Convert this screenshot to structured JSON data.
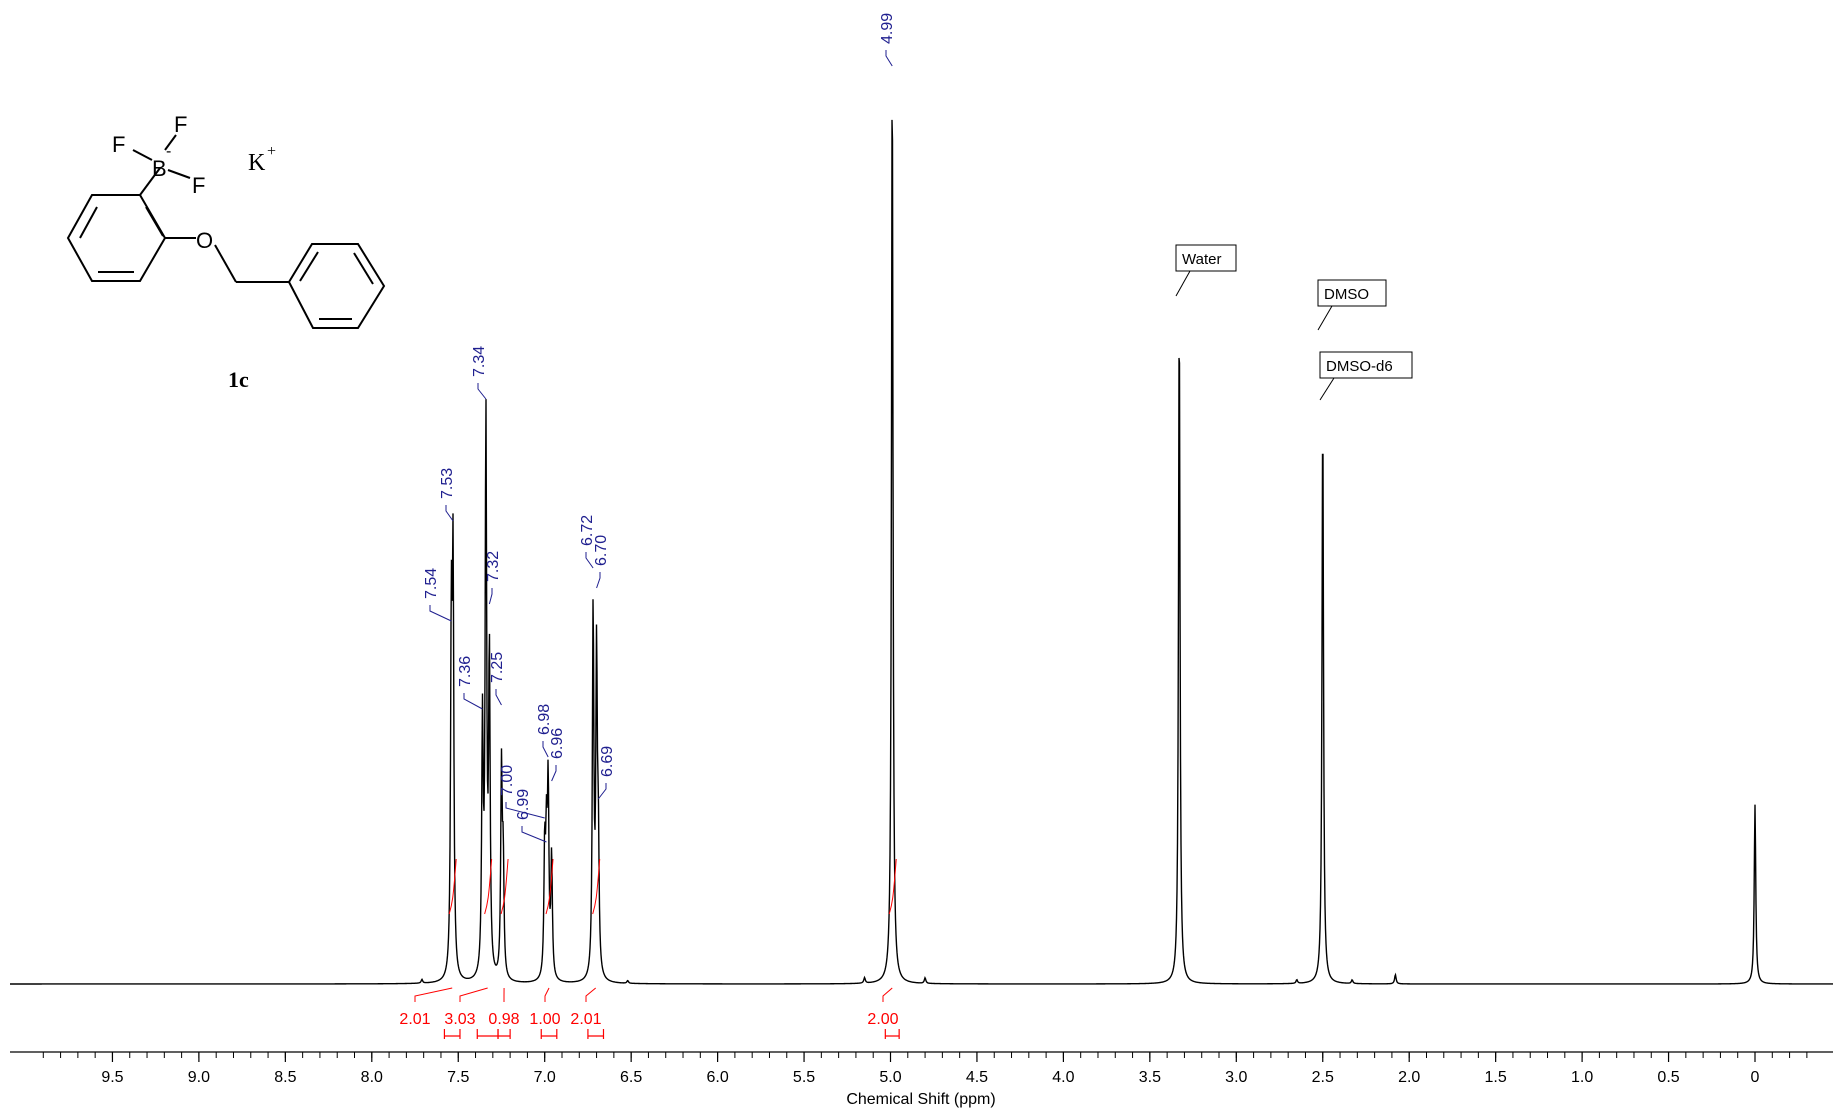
{
  "chart_data": {
    "type": "line",
    "xlabel": "Chemical Shift (ppm)",
    "ylabel": "",
    "xlim": [
      9.9,
      0.0
    ],
    "x_reversed": true,
    "ticks": [
      "9.5",
      "9.0",
      "8.5",
      "8.0",
      "7.5",
      "7.0",
      "6.5",
      "6.0",
      "5.5",
      "5.0",
      "4.5",
      "4.0",
      "3.5",
      "3.0",
      "2.5",
      "2.0",
      "1.5",
      "1.0",
      "0.5",
      "0"
    ],
    "tick_values": [
      9.5,
      9.0,
      8.5,
      8.0,
      7.5,
      7.0,
      6.5,
      6.0,
      5.5,
      5.0,
      4.5,
      4.0,
      3.5,
      3.0,
      2.5,
      2.0,
      1.5,
      1.0,
      0.5,
      0.0
    ],
    "peaks": [
      {
        "ppm": 7.54,
        "height": 0.365
      },
      {
        "ppm": 7.53,
        "height": 0.43
      },
      {
        "ppm": 7.36,
        "height": 0.27
      },
      {
        "ppm": 7.34,
        "height": 0.6
      },
      {
        "ppm": 7.32,
        "height": 0.345
      },
      {
        "ppm": 7.25,
        "height": 0.225
      },
      {
        "ppm": 7.24,
        "height": 0.12
      },
      {
        "ppm": 7.0,
        "height": 0.135
      },
      {
        "ppm": 6.99,
        "height": 0.13
      },
      {
        "ppm": 6.98,
        "height": 0.2
      },
      {
        "ppm": 6.96,
        "height": 0.13
      },
      {
        "ppm": 6.72,
        "height": 0.4
      },
      {
        "ppm": 6.7,
        "height": 0.34
      },
      {
        "ppm": 6.69,
        "height": 0.13
      },
      {
        "ppm": 4.99,
        "height": 1.0
      },
      {
        "ppm": 3.33,
        "height": 0.73
      },
      {
        "ppm": 2.5,
        "height": 0.62
      },
      {
        "ppm": 0.0,
        "height": 0.195
      },
      {
        "ppm": 2.08,
        "height": 0.01
      },
      {
        "ppm": 5.15,
        "height": 0.006
      },
      {
        "ppm": 4.8,
        "height": 0.006
      },
      {
        "ppm": 2.65,
        "height": 0.004
      },
      {
        "ppm": 2.33,
        "height": 0.004
      },
      {
        "ppm": 7.71,
        "height": 0.004
      },
      {
        "ppm": 6.52,
        "height": 0.003
      }
    ],
    "peak_labels": [
      {
        "ppm": 7.54,
        "text": "7.54"
      },
      {
        "ppm": 7.53,
        "text": "7.53"
      },
      {
        "ppm": 7.36,
        "text": "7.36"
      },
      {
        "ppm": 7.34,
        "text": "7.34"
      },
      {
        "ppm": 7.32,
        "text": "7.32"
      },
      {
        "ppm": 7.25,
        "text": "7.25"
      },
      {
        "ppm": 7.0,
        "text": "7.00"
      },
      {
        "ppm": 6.99,
        "text": "6.99"
      },
      {
        "ppm": 6.98,
        "text": "6.98"
      },
      {
        "ppm": 6.96,
        "text": "6.96"
      },
      {
        "ppm": 6.72,
        "text": "6.72"
      },
      {
        "ppm": 6.7,
        "text": "6.70"
      },
      {
        "ppm": 6.69,
        "text": "6.69"
      },
      {
        "ppm": 4.99,
        "text": "4.99"
      }
    ],
    "integrals": [
      {
        "from": 7.58,
        "to": 7.49,
        "value": "2.01"
      },
      {
        "from": 7.39,
        "to": 7.27,
        "value": "3.03"
      },
      {
        "from": 7.27,
        "to": 7.2,
        "value": "0.98"
      },
      {
        "from": 7.02,
        "to": 6.93,
        "value": "1.00"
      },
      {
        "from": 6.75,
        "to": 6.66,
        "value": "2.01"
      },
      {
        "from": 5.03,
        "to": 4.95,
        "value": "2.00"
      }
    ],
    "solvent_labels": [
      {
        "ppm": 3.33,
        "text": "Water"
      },
      {
        "ppm": 2.5,
        "text": "DMSO"
      },
      {
        "ppm": 2.5,
        "text": "DMSO-d6"
      }
    ],
    "colors": {
      "spectrum": "#000000",
      "peak_labels": "#1f1f8f",
      "integrals": "#ff0000"
    }
  },
  "structure": {
    "compound_id": "1c",
    "counterion": "K",
    "counterion_charge": "+",
    "atoms": {
      "fluorine": "F",
      "boron": "B",
      "boron_charge": "-",
      "oxygen": "O"
    }
  }
}
